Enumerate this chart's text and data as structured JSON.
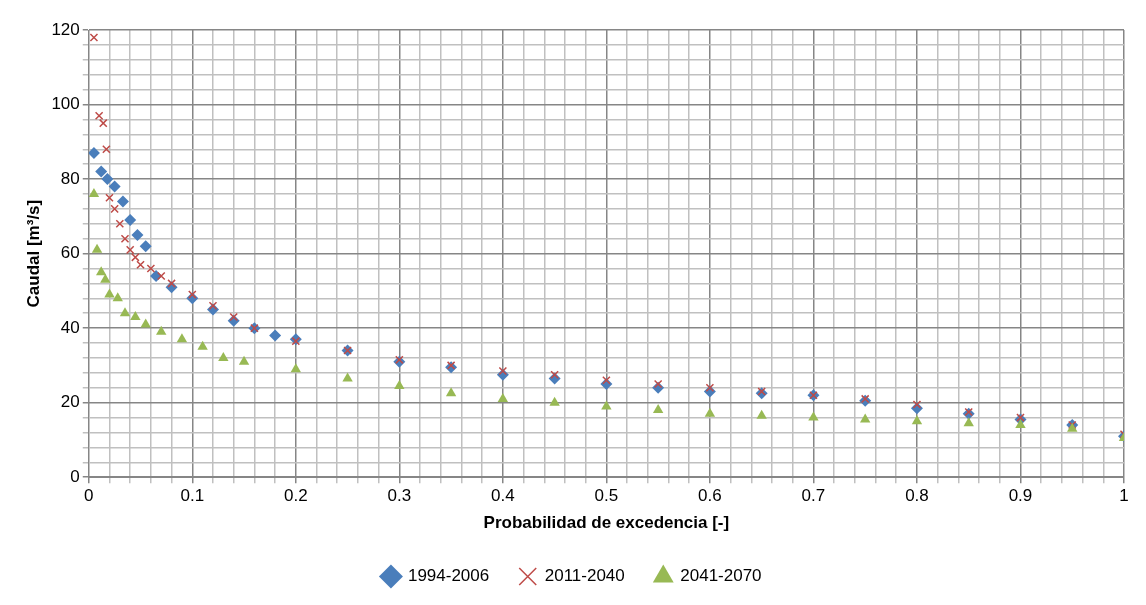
{
  "chart_data": {
    "type": "scatter",
    "xlabel": "Probabilidad de excedencia [-]",
    "ylabel": "Caudal [m³/s]",
    "xlim": [
      0,
      1
    ],
    "ylim": [
      0,
      120
    ],
    "xticks": [
      0,
      {
        "value": 0.02,
        "label": null
      },
      {
        "value": 0.04,
        "label": null
      },
      {
        "value": 0.06,
        "label": null
      },
      {
        "value": 0.08,
        "label": null
      },
      0.1,
      {
        "value": 0.12,
        "label": null
      },
      {
        "value": 0.14,
        "label": null
      },
      {
        "value": 0.16,
        "label": null
      },
      {
        "value": 0.18,
        "label": null
      },
      0.2,
      {
        "value": 0.22,
        "label": null
      },
      {
        "value": 0.24,
        "label": null
      },
      {
        "value": 0.26,
        "label": null
      },
      {
        "value": 0.28,
        "label": null
      },
      0.3,
      {
        "value": 0.32,
        "label": null
      },
      {
        "value": 0.34,
        "label": null
      },
      {
        "value": 0.36,
        "label": null
      },
      {
        "value": 0.38,
        "label": null
      },
      0.4,
      {
        "value": 0.42,
        "label": null
      },
      {
        "value": 0.44,
        "label": null
      },
      {
        "value": 0.46,
        "label": null
      },
      {
        "value": 0.48,
        "label": null
      },
      0.5,
      {
        "value": 0.52,
        "label": null
      },
      {
        "value": 0.54,
        "label": null
      },
      {
        "value": 0.56,
        "label": null
      },
      {
        "value": 0.58,
        "label": null
      },
      0.6,
      {
        "value": 0.62,
        "label": null
      },
      {
        "value": 0.64,
        "label": null
      },
      {
        "value": 0.66,
        "label": null
      },
      {
        "value": 0.68,
        "label": null
      },
      0.7,
      {
        "value": 0.72,
        "label": null
      },
      {
        "value": 0.74,
        "label": null
      },
      {
        "value": 0.76,
        "label": null
      },
      {
        "value": 0.78,
        "label": null
      },
      0.8,
      {
        "value": 0.82,
        "label": null
      },
      {
        "value": 0.84,
        "label": null
      },
      {
        "value": 0.86,
        "label": null
      },
      {
        "value": 0.88,
        "label": null
      },
      0.9,
      {
        "value": 0.92,
        "label": null
      },
      {
        "value": 0.94,
        "label": null
      },
      {
        "value": 0.96,
        "label": null
      },
      {
        "value": 0.98,
        "label": null
      },
      1
    ],
    "yticks": [
      0,
      {
        "value": 4,
        "label": null
      },
      {
        "value": 8,
        "label": null
      },
      {
        "value": 12,
        "label": null
      },
      {
        "value": 16,
        "label": null
      },
      20,
      {
        "value": 24,
        "label": null
      },
      {
        "value": 28,
        "label": null
      },
      {
        "value": 32,
        "label": null
      },
      {
        "value": 36,
        "label": null
      },
      40,
      {
        "value": 44,
        "label": null
      },
      {
        "value": 48,
        "label": null
      },
      {
        "value": 52,
        "label": null
      },
      {
        "value": 56,
        "label": null
      },
      60,
      {
        "value": 64,
        "label": null
      },
      {
        "value": 68,
        "label": null
      },
      {
        "value": 72,
        "label": null
      },
      {
        "value": 76,
        "label": null
      },
      80,
      {
        "value": 84,
        "label": null
      },
      {
        "value": 88,
        "label": null
      },
      {
        "value": 92,
        "label": null
      },
      {
        "value": 96,
        "label": null
      },
      100,
      {
        "value": 104,
        "label": null
      },
      {
        "value": 108,
        "label": null
      },
      {
        "value": 112,
        "label": null
      },
      {
        "value": 116,
        "label": null
      },
      120
    ],
    "grid": true,
    "legend": "bottom",
    "series": [
      {
        "name": "1994-2006",
        "color": "#4a7ebb",
        "marker": "diamond",
        "x": [
          0.005,
          0.012,
          0.018,
          0.025,
          0.033,
          0.04,
          0.047,
          0.055,
          0.065,
          0.08,
          0.1,
          0.12,
          0.14,
          0.16,
          0.18,
          0.2,
          0.25,
          0.3,
          0.35,
          0.4,
          0.45,
          0.5,
          0.55,
          0.6,
          0.65,
          0.7,
          0.75,
          0.8,
          0.85,
          0.9,
          0.95,
          1.0
        ],
        "values": [
          87,
          82,
          80,
          78,
          74,
          69,
          65,
          62,
          54,
          51,
          48,
          45,
          42,
          40,
          38,
          37,
          34,
          31,
          29.5,
          27.5,
          26.5,
          25,
          24,
          23,
          22.5,
          22,
          20.5,
          18.5,
          17,
          15.5,
          14,
          11
        ]
      },
      {
        "name": "2011-2040",
        "color": "#be4b48",
        "marker": "cross",
        "x": [
          0.005,
          0.01,
          0.014,
          0.017,
          0.02,
          0.025,
          0.03,
          0.035,
          0.04,
          0.045,
          0.05,
          0.06,
          0.07,
          0.08,
          0.1,
          0.12,
          0.14,
          0.16,
          0.2,
          0.25,
          0.3,
          0.35,
          0.4,
          0.45,
          0.5,
          0.55,
          0.6,
          0.65,
          0.7,
          0.75,
          0.8,
          0.85,
          0.9,
          0.95,
          1.0
        ],
        "values": [
          118,
          97,
          95,
          88,
          75,
          72,
          68,
          64,
          61,
          59,
          57,
          56,
          54,
          52,
          49,
          46,
          43,
          40,
          36.5,
          34,
          31.5,
          30,
          28.5,
          27.5,
          26,
          25,
          24,
          23,
          22,
          21,
          19.5,
          17.5,
          16,
          14,
          11.5
        ]
      },
      {
        "name": "2041-2070",
        "color": "#98b954",
        "marker": "triangle",
        "x": [
          0.005,
          0.008,
          0.012,
          0.016,
          0.02,
          0.028,
          0.035,
          0.045,
          0.055,
          0.07,
          0.09,
          0.11,
          0.13,
          0.15,
          0.2,
          0.25,
          0.3,
          0.35,
          0.4,
          0.45,
          0.5,
          0.55,
          0.6,
          0.65,
          0.7,
          0.75,
          0.8,
          0.85,
          0.9,
          0.95,
          1.0
        ],
        "values": [
          76,
          61,
          55,
          53,
          49,
          48,
          44,
          43,
          41,
          39,
          37,
          35,
          32,
          31,
          29,
          26.5,
          24.5,
          22.5,
          21,
          20,
          19,
          18,
          17,
          16.5,
          16,
          15.5,
          15,
          14.5,
          14,
          13,
          10.5
        ]
      }
    ]
  }
}
